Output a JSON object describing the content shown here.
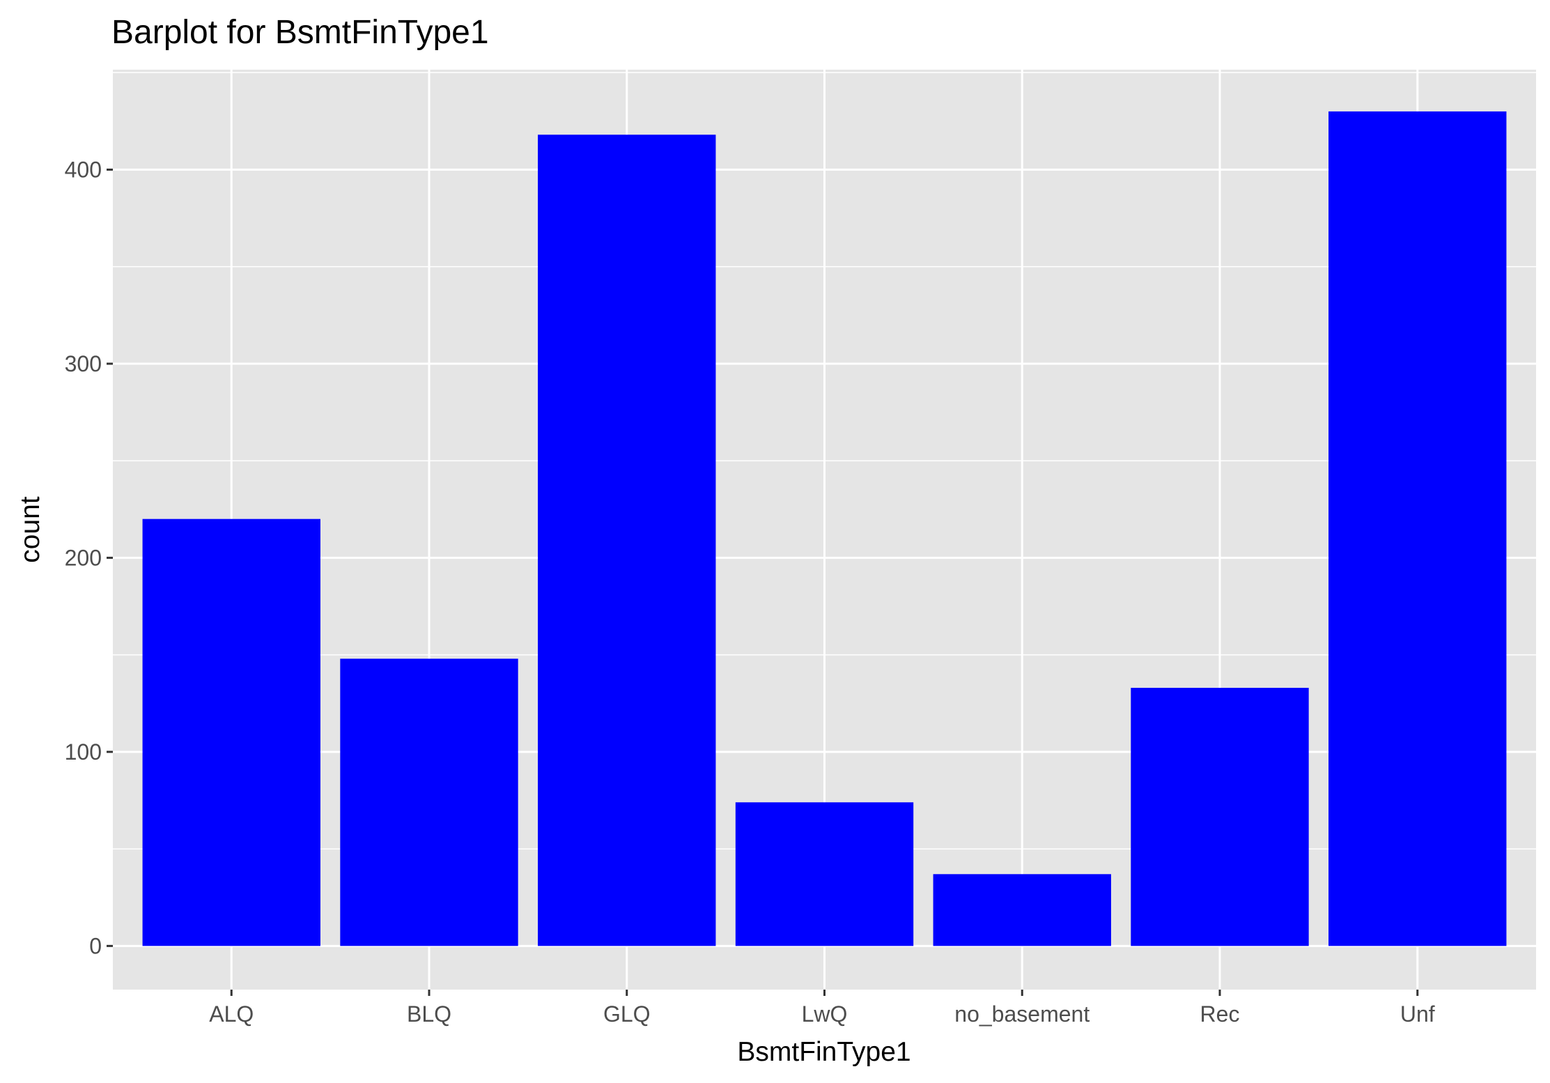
{
  "chart_data": {
    "type": "bar",
    "title": "Barplot for BsmtFinType1",
    "xlabel": "BsmtFinType1",
    "ylabel": "count",
    "categories": [
      "ALQ",
      "BLQ",
      "GLQ",
      "LwQ",
      "no_basement",
      "Rec",
      "Unf"
    ],
    "values": [
      220,
      148,
      418,
      74,
      37,
      133,
      430
    ],
    "ylim": [
      -22.5,
      451.5
    ],
    "yticks": [
      0,
      100,
      200,
      300,
      400
    ],
    "grid": true,
    "legend": "none",
    "bar_color": "#0000FF",
    "panel_color": "#E5E5E5",
    "grid_color": "#FFFFFF"
  }
}
